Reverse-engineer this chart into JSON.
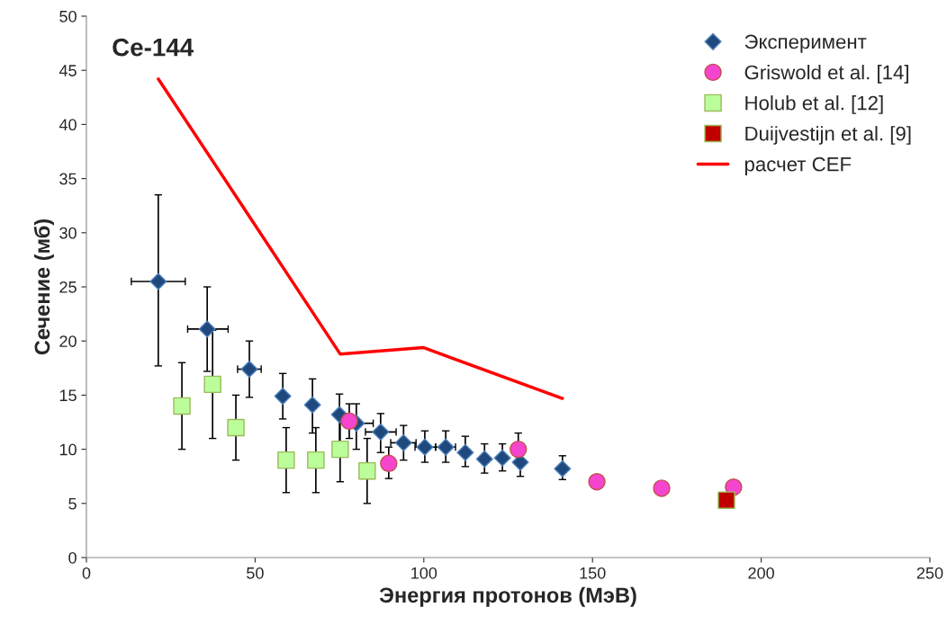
{
  "chart_data": {
    "type": "scatter",
    "title": "Ce-144",
    "xlabel": "Энергия протонов (МэВ)",
    "ylabel": "Сечение (мб)",
    "xlim": [
      0,
      250
    ],
    "xticks": [
      0,
      50,
      100,
      150,
      200,
      250
    ],
    "ylim": [
      0,
      50
    ],
    "yticks": [
      0,
      5,
      10,
      15,
      20,
      25,
      30,
      35,
      40,
      45,
      50
    ],
    "grid": false,
    "legend": "top right",
    "series": [
      {
        "name": "Эксперимент",
        "marker": "diamond",
        "color": "#1f497d",
        "x": [
          21.3,
          35.8,
          48.3,
          58.2,
          67,
          75,
          80,
          87.2,
          94,
          100.3,
          106.5,
          112.3,
          118,
          123.3,
          128.6,
          141.1
        ],
        "values": [
          25.5,
          21.1,
          17.4,
          14.9,
          14.1,
          13.2,
          12.4,
          11.6,
          10.6,
          10.2,
          10.2,
          9.7,
          9.1,
          9.2,
          8.8,
          8.2
        ],
        "errors": [
          [
            17.7,
            33.5
          ],
          [
            17.2,
            25
          ],
          [
            14.8,
            20
          ],
          [
            12.8,
            17
          ],
          [
            11.5,
            16.5
          ],
          [
            10.5,
            15.1
          ],
          [
            10,
            14.2
          ],
          [
            9.7,
            13.3
          ],
          [
            9,
            12.2
          ],
          [
            8.8,
            11.7
          ],
          [
            8.8,
            11.7
          ],
          [
            8.4,
            11.2
          ],
          [
            7.8,
            10.5
          ],
          [
            8,
            10.5
          ],
          [
            7.5,
            8.8
          ],
          [
            7.2,
            9.4
          ]
        ],
        "xerrors": [
          [
            13.3,
            29.3
          ],
          [
            30,
            42
          ],
          [
            44.8,
            51.8
          ],
          null,
          null,
          null,
          [
            80,
            85
          ],
          [
            82.7,
            91.8
          ],
          [
            90.2,
            97.7
          ],
          [
            97.4,
            103.5
          ],
          [
            103.5,
            109.4
          ],
          null,
          null,
          null,
          null,
          null
        ]
      },
      {
        "name": "Griswold et al. [14]",
        "marker": "circle",
        "color": "#f545cf",
        "x": [
          77.9,
          89.6,
          128,
          151.3,
          170.5,
          191.8
        ],
        "values": [
          12.6,
          8.7,
          10,
          7,
          6.4,
          6.5
        ],
        "errors": [
          [
            11,
            14.2
          ],
          [
            7.3,
            10.2
          ],
          [
            8.6,
            11.5
          ],
          null,
          null,
          null
        ]
      },
      {
        "name": "Holub et al. [12]",
        "marker": "square",
        "color": "#bbfd9b",
        "x": [
          28.3,
          37.4,
          44.3,
          59.2,
          68,
          75.2,
          83.2
        ],
        "values": [
          14,
          16,
          12,
          9,
          9,
          10,
          8
        ],
        "errors": [
          [
            10,
            18
          ],
          [
            11,
            21
          ],
          [
            9,
            15
          ],
          [
            6,
            12
          ],
          [
            6,
            12
          ],
          [
            7,
            13
          ],
          [
            5,
            11
          ]
        ]
      },
      {
        "name": "Duijvestijn et al. [9]",
        "marker": "square",
        "color": "#c00000",
        "x": [
          189.7
        ],
        "values": [
          5.3
        ]
      },
      {
        "name": "расчет CEF",
        "type": "line",
        "marker": "none",
        "color": "#ff0000",
        "x": [
          21.3,
          48.3,
          75.2,
          99.8,
          141.1
        ],
        "values": [
          44.2,
          31.5,
          18.8,
          19.4,
          14.7
        ]
      }
    ]
  }
}
